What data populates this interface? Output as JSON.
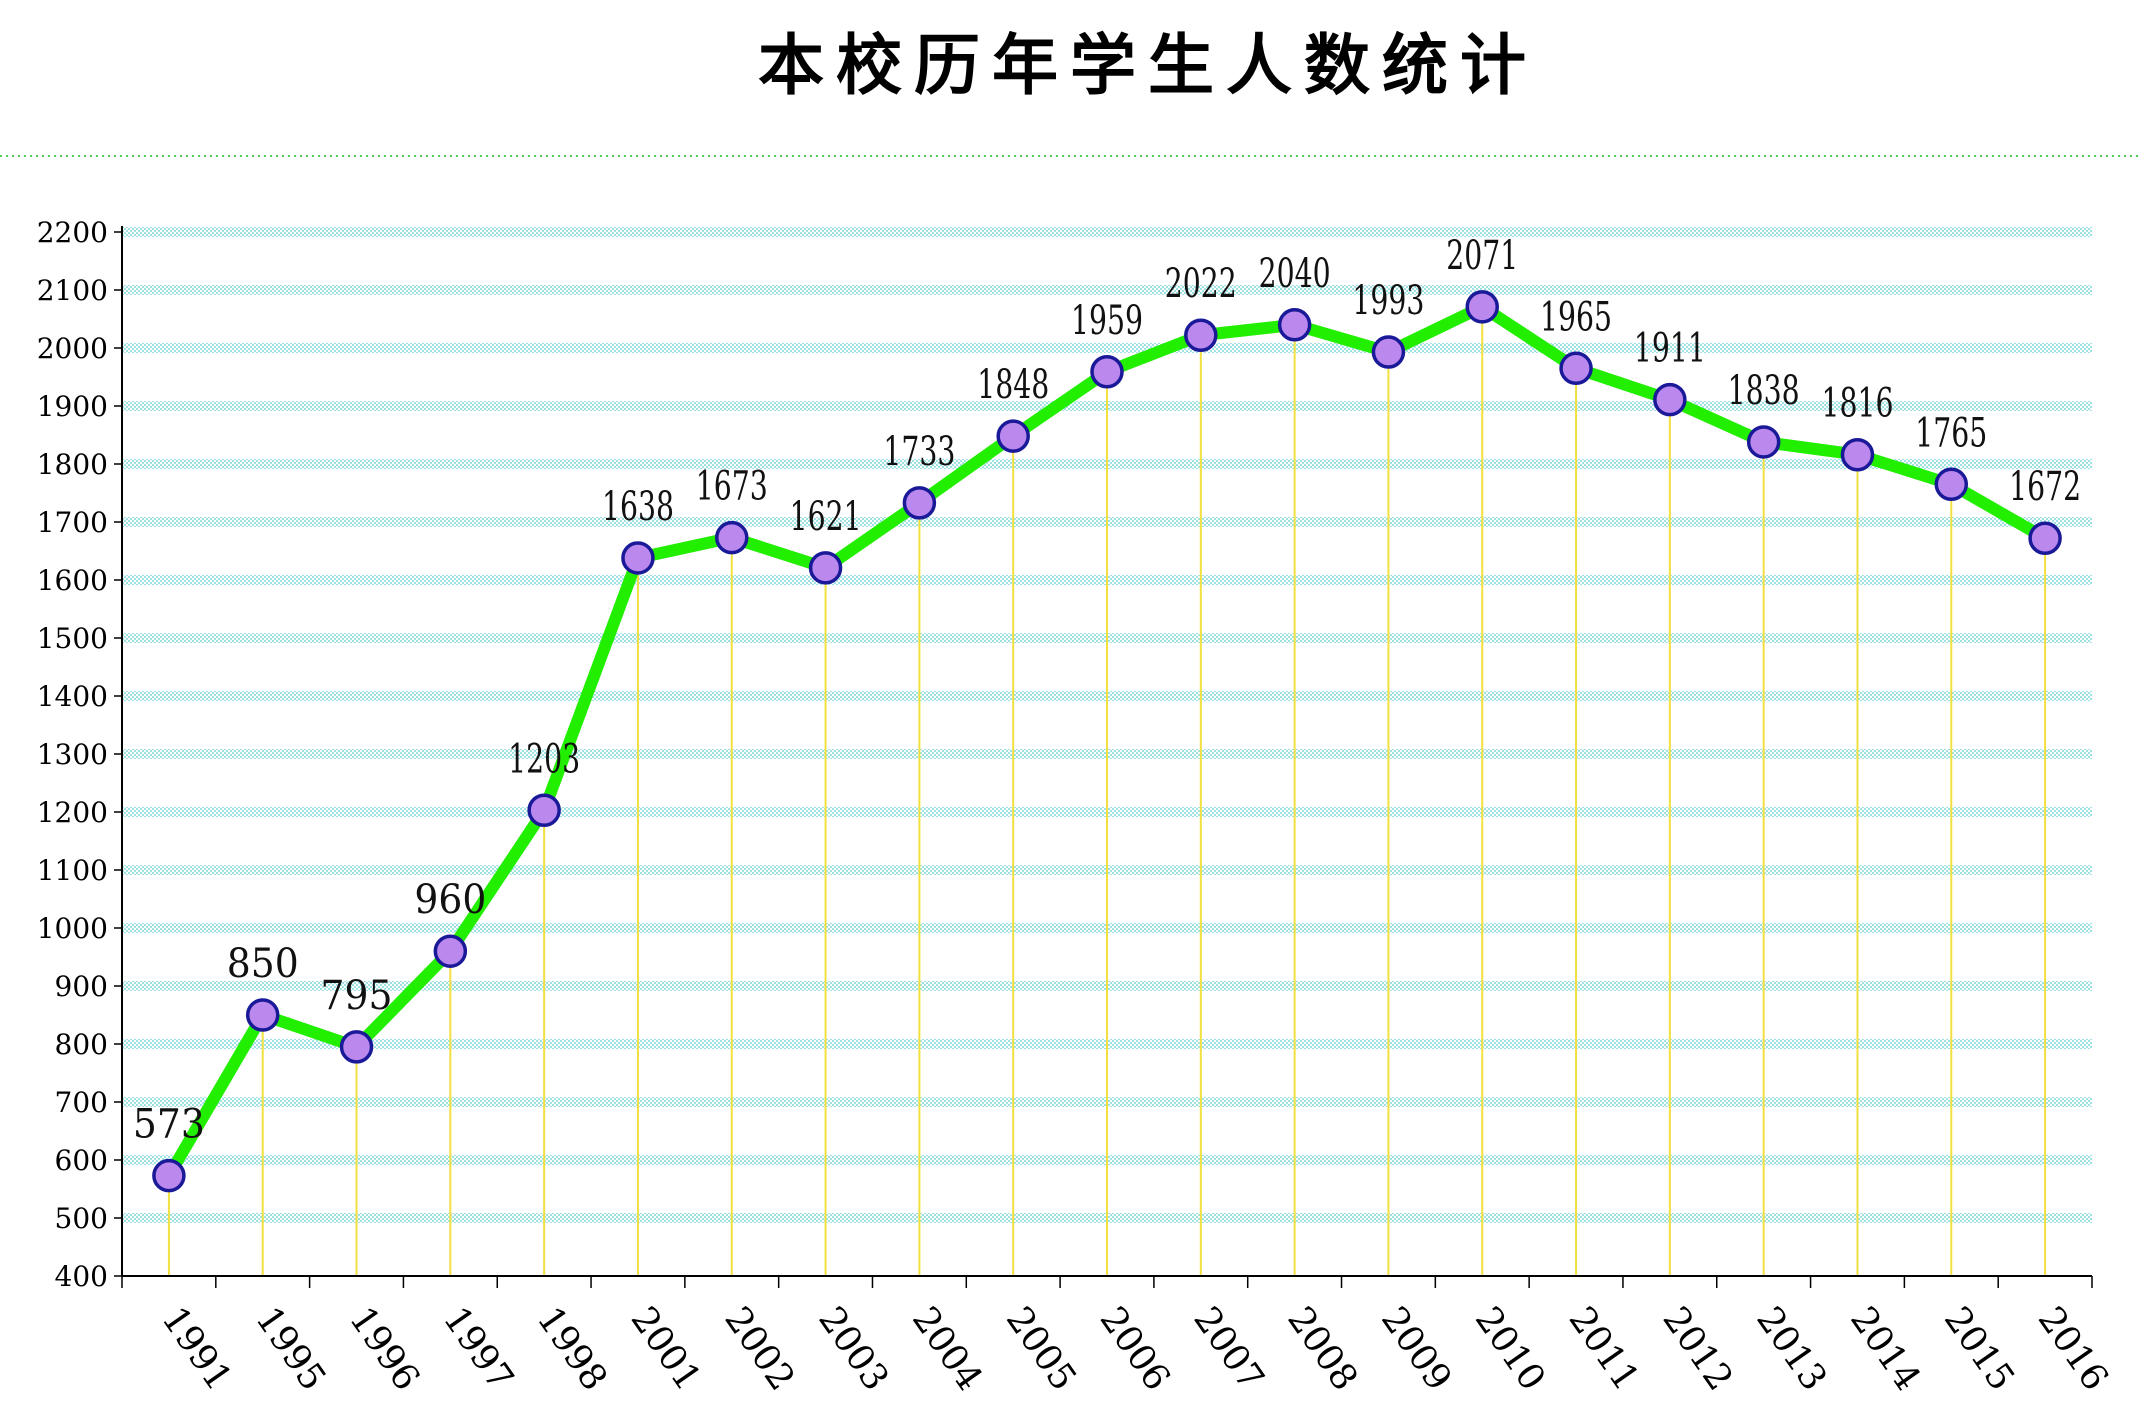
{
  "chart_data": {
    "type": "line",
    "title": "本校历年学生人数统计",
    "xlabel": "",
    "ylabel": "",
    "categories": [
      "1991",
      "1995",
      "1996",
      "1997",
      "1998",
      "2001",
      "2002",
      "2003",
      "2004",
      "2005",
      "2006",
      "2007",
      "2008",
      "2009",
      "2010",
      "2011",
      "2012",
      "2013",
      "2014",
      "2015",
      "2016"
    ],
    "series": [
      {
        "values": [
          573,
          850,
          795,
          960,
          1203,
          1638,
          1673,
          1621,
          1733,
          1848,
          1959,
          2022,
          2040,
          1993,
          2071,
          1965,
          1911,
          1838,
          1816,
          1765,
          1672
        ]
      }
    ],
    "ylim": [
      400,
      2200
    ],
    "yticks": [
      400,
      500,
      600,
      700,
      800,
      900,
      1000,
      1100,
      1200,
      1300,
      1400,
      1500,
      1600,
      1700,
      1800,
      1900,
      2000,
      2100,
      2200
    ],
    "grid": true,
    "legend": "none",
    "data_labels": true,
    "colors": {
      "line": "#22ee00",
      "marker_fill": "#bb88ee",
      "marker_stroke": "#1a1a99",
      "grid_band": "#a8e8ea",
      "drop_line": "#f2e040",
      "separator": "#55cc55"
    }
  }
}
